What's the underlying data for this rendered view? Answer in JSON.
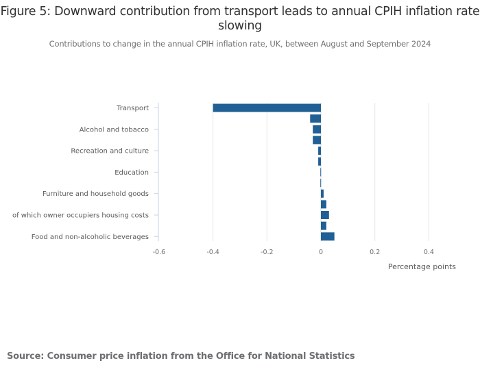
{
  "chart_data": {
    "type": "bar",
    "orientation": "horizontal",
    "title": "Figure 5: Downward contribution from transport leads to annual CPIH inflation rate slowing",
    "subtitle": "Contributions to change in the annual CPIH inflation rate, UK, between August and September 2024",
    "xlabel": "Percentage points",
    "ylabel": "",
    "xlim": [
      -0.6,
      0.45
    ],
    "xticks": [
      -0.6,
      -0.4,
      -0.2,
      0,
      0.2,
      0.4
    ],
    "xtick_labels": [
      "-0.6",
      "-0.4",
      "-0.2",
      "0",
      "0.2",
      "0.4"
    ],
    "grid": true,
    "bar_color": "#206095",
    "categories": [
      "Transport",
      "",
      "Alcohol and tobacco",
      "",
      "Recreation and culture",
      "",
      "Education",
      "",
      "Furniture and household goods",
      "",
      "of which owner occupiers housing costs",
      "",
      "Food and non-alcoholic beverages"
    ],
    "values": [
      -0.4,
      -0.04,
      -0.03,
      -0.03,
      -0.01,
      -0.01,
      -0.002,
      -0.002,
      0.01,
      0.02,
      0.03,
      0.02,
      0.05
    ]
  },
  "source": "Source: Consumer price inflation from the Office for National Statistics"
}
